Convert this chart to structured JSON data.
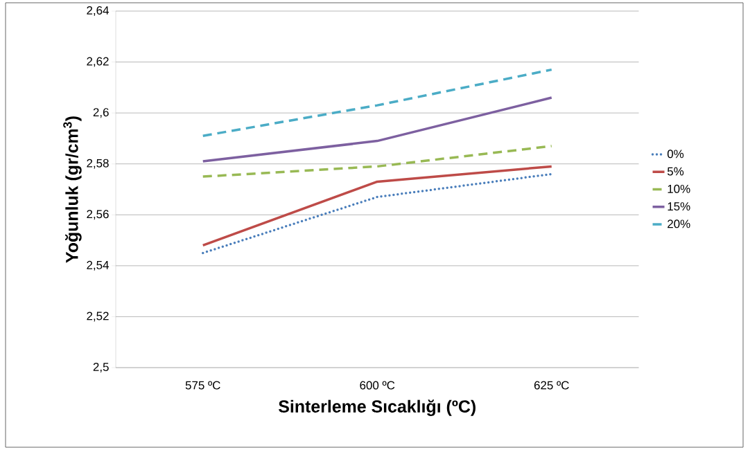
{
  "chart_data": {
    "type": "line",
    "xlabel": "Sinterleme  Sıcaklığı (ºC)",
    "ylabel": "Yoğunluk (gr/cm$^{3}$)",
    "categories": [
      "575 ºC",
      "600 ºC",
      "625 ºC"
    ],
    "series": [
      {
        "name": "0%",
        "color": "#4a7ebb",
        "line_style": "dotted",
        "values": [
          2.545,
          2.567,
          2.576
        ]
      },
      {
        "name": "5%",
        "color": "#be4b48",
        "line_style": "solid",
        "values": [
          2.548,
          2.573,
          2.579
        ]
      },
      {
        "name": "10%",
        "color": "#98b954",
        "line_style": "dashed",
        "values": [
          2.575,
          2.579,
          2.587
        ]
      },
      {
        "name": "15%",
        "color": "#7d60a0",
        "line_style": "solid",
        "values": [
          2.581,
          2.589,
          2.606
        ]
      },
      {
        "name": "20%",
        "color": "#4bacc6",
        "line_style": "dashed",
        "values": [
          2.591,
          2.603,
          2.617
        ]
      }
    ],
    "ylim": [
      2.5,
      2.64
    ],
    "yticks": [
      {
        "value": 2.5,
        "label": "2,5"
      },
      {
        "value": 2.52,
        "label": "2,52"
      },
      {
        "value": 2.54,
        "label": "2,54"
      },
      {
        "value": 2.56,
        "label": "2,56"
      },
      {
        "value": 2.58,
        "label": "2,58"
      },
      {
        "value": 2.6,
        "label": "2,6"
      },
      {
        "value": 2.62,
        "label": "2,62"
      },
      {
        "value": 2.64,
        "label": "2,64"
      }
    ],
    "grid": "y",
    "legend": "right"
  }
}
